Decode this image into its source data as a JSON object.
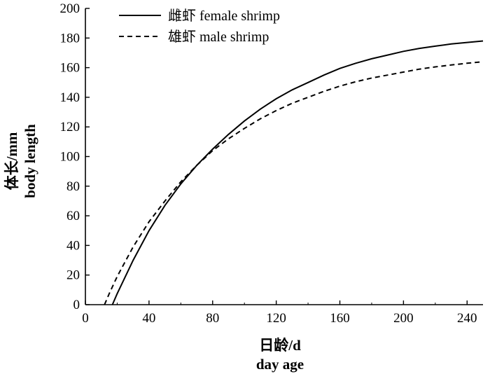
{
  "chart_data": {
    "type": "line",
    "xlabel": [
      "日龄/d",
      "day age"
    ],
    "ylabel": [
      "体长/mm",
      "body length"
    ],
    "xlim": [
      0,
      250
    ],
    "ylim": [
      0,
      200
    ],
    "xticks": [
      0,
      40,
      80,
      120,
      160,
      200,
      240
    ],
    "yticks": [
      0,
      20,
      40,
      60,
      80,
      100,
      120,
      140,
      160,
      180,
      200
    ],
    "grid": false,
    "legend_position": "top-left",
    "series": [
      {
        "name": "雌虾 female shrimp",
        "style": "solid",
        "color": "#000000",
        "x": [
          17,
          20,
          30,
          40,
          50,
          60,
          70,
          80,
          90,
          100,
          110,
          120,
          130,
          140,
          150,
          160,
          170,
          180,
          190,
          200,
          210,
          220,
          230,
          240,
          250
        ],
        "y": [
          0,
          7.4,
          30,
          50,
          67,
          81.5,
          94,
          105,
          115,
          124,
          132,
          139,
          145,
          150,
          155,
          159.5,
          163,
          166,
          168.5,
          171,
          173,
          174.5,
          176,
          177,
          178
        ]
      },
      {
        "name": "雄虾 male shrimp",
        "style": "dashed",
        "color": "#000000",
        "x": [
          12,
          15,
          20,
          30,
          40,
          50,
          60,
          70,
          80,
          90,
          100,
          110,
          120,
          130,
          140,
          150,
          160,
          170,
          180,
          190,
          200,
          210,
          220,
          230,
          240,
          250
        ],
        "y": [
          0,
          7.5,
          19,
          39,
          56,
          70,
          83,
          94,
          104,
          112,
          119,
          125.5,
          131,
          136,
          140,
          144,
          147.5,
          150.5,
          153,
          155,
          157,
          159,
          160.5,
          161.8,
          163,
          164
        ]
      }
    ]
  }
}
